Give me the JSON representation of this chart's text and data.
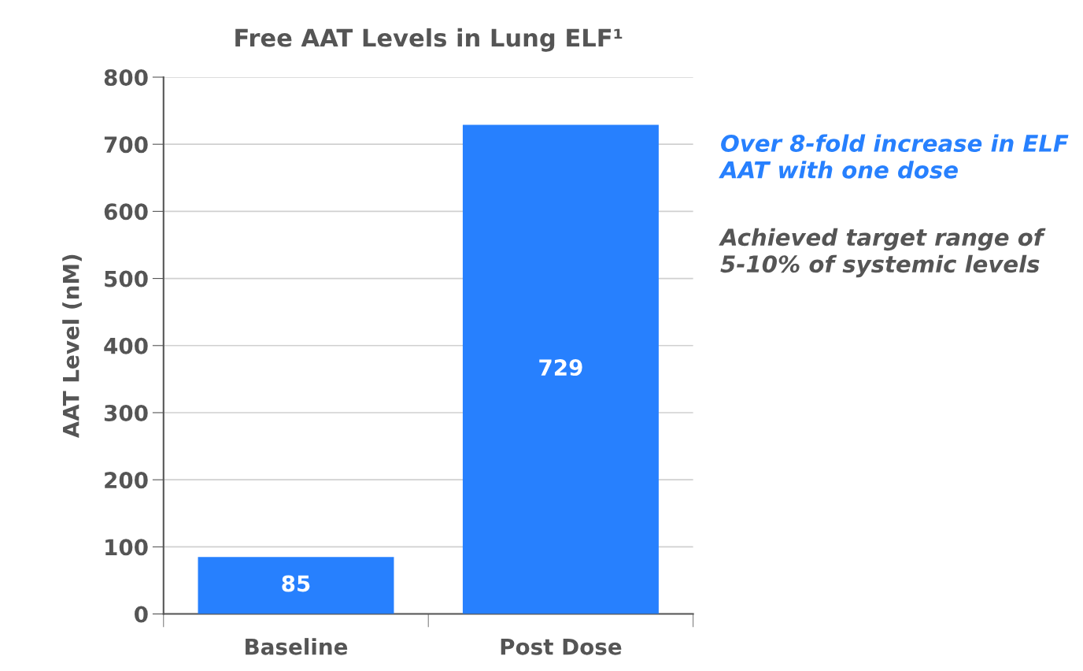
{
  "chart_data": {
    "type": "bar",
    "title": "Free AAT Levels in Lung ELF¹",
    "ylabel": "AAT Level (nM)",
    "categories": [
      "Baseline",
      "Post Dose"
    ],
    "values": [
      85,
      729
    ],
    "color": "#2780fe",
    "ylim": [
      0,
      800
    ],
    "yticks": [
      0,
      100,
      200,
      300,
      400,
      500,
      600,
      700,
      800
    ],
    "grid": "y",
    "data_labels": true,
    "annotations": [
      "Over 8-fold increase in ELF AAT with one dose",
      "Achieved target range of 5-10% of systemic levels"
    ]
  }
}
